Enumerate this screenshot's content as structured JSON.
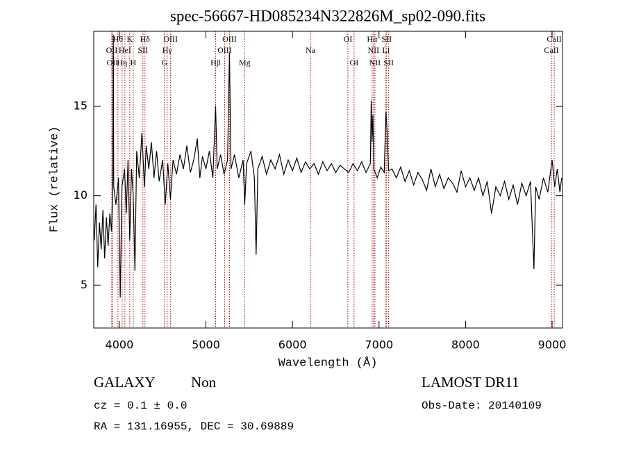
{
  "chart_data": {
    "type": "line",
    "title": "spec-56667-HD085234N322826M_sp02-090.fits",
    "x_label": "Wavelength (Å)",
    "y_label": "Flux (relative)",
    "color": "#000000",
    "line_color": "#b00000",
    "xlim": [
      3704,
      9120
    ],
    "ylim": [
      2.6,
      19.2
    ],
    "xticks": [
      4000,
      5000,
      6000,
      7000,
      8000,
      9000
    ],
    "yticks": [
      5,
      10,
      15
    ],
    "x": [
      3710,
      3730,
      3750,
      3770,
      3790,
      3810,
      3830,
      3850,
      3870,
      3890,
      3910,
      3925,
      3930,
      3935,
      3960,
      3990,
      4010,
      4030,
      4060,
      4080,
      4100,
      4120,
      4140,
      4160,
      4180,
      4200,
      4230,
      4260,
      4290,
      4310,
      4340,
      4370,
      4400,
      4430,
      4460,
      4500,
      4530,
      4560,
      4590,
      4620,
      4660,
      4700,
      4740,
      4780,
      4820,
      4860,
      4900,
      4930,
      4960,
      5000,
      5040,
      5080,
      5112,
      5130,
      5170,
      5210,
      5250,
      5272,
      5290,
      5330,
      5380,
      5430,
      5448,
      5470,
      5520,
      5560,
      5580,
      5600,
      5650,
      5700,
      5750,
      5800,
      5850,
      5900,
      5950,
      6000,
      6050,
      6100,
      6150,
      6200,
      6250,
      6300,
      6350,
      6400,
      6450,
      6500,
      6550,
      6600,
      6650,
      6700,
      6750,
      6800,
      6850,
      6900,
      6910,
      6920,
      6930,
      6940,
      6980,
      7020,
      7060,
      7080,
      7095,
      7110,
      7150,
      7200,
      7250,
      7300,
      7350,
      7400,
      7450,
      7500,
      7550,
      7600,
      7650,
      7700,
      7750,
      7800,
      7850,
      7900,
      7950,
      8000,
      8050,
      8100,
      8150,
      8200,
      8250,
      8300,
      8350,
      8400,
      8450,
      8500,
      8550,
      8600,
      8650,
      8700,
      8750,
      8790,
      8810,
      8850,
      8900,
      8950,
      9000,
      9030,
      9060,
      9090,
      9110
    ],
    "values": [
      7.5,
      9.5,
      6.0,
      8.5,
      7.0,
      9.2,
      6.5,
      8.8,
      7.2,
      9.0,
      8.0,
      11.0,
      19.0,
      10.5,
      9.5,
      11.0,
      4.3,
      10.5,
      11.5,
      9.0,
      12.0,
      7.5,
      11.5,
      10.0,
      5.8,
      12.5,
      11.0,
      13.5,
      10.5,
      12.8,
      11.5,
      13.0,
      11.0,
      12.5,
      10.8,
      12.0,
      9.5,
      11.8,
      9.8,
      12.0,
      11.2,
      12.3,
      11.5,
      12.8,
      11.3,
      12.0,
      13.2,
      11.0,
      12.2,
      11.5,
      12.5,
      11.0,
      15.0,
      11.5,
      12.3,
      11.2,
      12.0,
      18.0,
      11.5,
      12.3,
      11.0,
      12.0,
      9.5,
      11.8,
      12.5,
      11.0,
      6.7,
      11.5,
      12.2,
      11.2,
      12.0,
      11.5,
      12.3,
      11.2,
      12.0,
      11.4,
      12.1,
      11.3,
      11.9,
      11.5,
      11.8,
      11.2,
      11.9,
      11.4,
      11.8,
      11.3,
      11.7,
      11.5,
      11.3,
      11.8,
      11.4,
      11.9,
      11.3,
      11.8,
      15.3,
      13.0,
      14.5,
      11.5,
      11.0,
      11.6,
      11.3,
      14.7,
      13.5,
      11.4,
      11.5,
      11.0,
      11.6,
      10.8,
      11.4,
      10.6,
      11.3,
      10.9,
      10.3,
      11.5,
      10.5,
      11.2,
      10.4,
      11.0,
      10.7,
      10.2,
      11.4,
      10.5,
      11.0,
      10.3,
      11.0,
      10.0,
      10.8,
      9.0,
      10.5,
      10.0,
      10.8,
      9.8,
      10.6,
      9.5,
      10.7,
      10.0,
      10.8,
      5.9,
      10.5,
      9.8,
      11.0,
      10.2,
      12.0,
      10.5,
      11.5,
      10.2,
      11.0
    ],
    "line_label_rows": [
      [
        {
          "label": "Hθ",
          "wavelength": 3984
        },
        {
          "label": "K",
          "wavelength": 4120
        },
        {
          "label": "Hδ",
          "wavelength": 4296
        },
        {
          "label": "OIII",
          "wavelength": 4592
        },
        {
          "label": "OIII",
          "wavelength": 5272
        },
        {
          "label": "OI",
          "wavelength": 6640
        },
        {
          "label": "Hα",
          "wavelength": 6920
        },
        {
          "label": "SII",
          "wavelength": 7088
        },
        {
          "label": "CaII",
          "wavelength": 9024
        }
      ],
      [
        {
          "label": "OII",
          "wavelength": 3912
        },
        {
          "label": "HeI",
          "wavelength": 4064
        },
        {
          "label": "SII",
          "wavelength": 4272
        },
        {
          "label": "Hγ",
          "wavelength": 4552
        },
        {
          "label": "OIII",
          "wavelength": 5216
        },
        {
          "label": "Na",
          "wavelength": 6208
        },
        {
          "label": "NII",
          "wavelength": 6936
        },
        {
          "label": "Li",
          "wavelength": 7080
        },
        {
          "label": "CaII",
          "wavelength": 8992
        }
      ],
      [
        {
          "label": "OII",
          "wavelength": 3920
        },
        {
          "label": "Hη",
          "wavelength": 4032
        },
        {
          "label": "H",
          "wavelength": 4160
        },
        {
          "label": "G",
          "wavelength": 4520
        },
        {
          "label": "Hβ",
          "wavelength": 5112
        },
        {
          "label": "Mg",
          "wavelength": 5448
        },
        {
          "label": "OI",
          "wavelength": 6712
        },
        {
          "label": "NII",
          "wavelength": 6952
        },
        {
          "label": "SII",
          "wavelength": 7112
        }
      ]
    ],
    "annotations": [
      "GALAXY",
      "Non",
      "LAMOST DR11",
      "cz = 0.1 ± 0.0",
      "Obs-Date: 20140109",
      "RA = 131.16955, DEC =  30.69889"
    ]
  }
}
